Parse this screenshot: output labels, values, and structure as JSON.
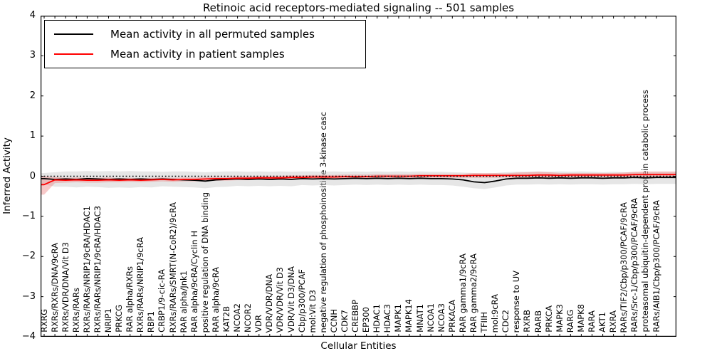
{
  "window": {
    "title": "Retinoic acid receptors-mediated signaling -- 501 samples"
  },
  "colors": {
    "background": "#ffffff",
    "axis": "#000000",
    "permuted_line": "#000000",
    "permuted_band": "#dcdcdc",
    "patient_line": "#ff0000",
    "patient_band": "#f5bcbc",
    "reference_line": "#000000"
  },
  "chart_data": {
    "type": "line",
    "title": "Retinoic acid receptors-mediated signaling -- 501 samples",
    "xlabel": "Cellular Entities",
    "ylabel": "Inferred Activity",
    "ylim": [
      -4,
      4
    ],
    "grid": false,
    "legend_position": "upper left",
    "yticks": [
      {
        "label": "4",
        "value": 4
      },
      {
        "label": "3",
        "value": 3
      },
      {
        "label": "2",
        "value": 2
      },
      {
        "label": "1",
        "value": 1
      },
      {
        "label": "0",
        "value": 0
      },
      {
        "label": "−1",
        "value": -1
      },
      {
        "label": "−2",
        "value": -2
      },
      {
        "label": "−3",
        "value": -3
      },
      {
        "label": "−4",
        "value": -4
      }
    ],
    "categories": [
      "RXRG",
      "RXRs/RXRs/DNA/9cRA",
      "RXRs/VDR/DNA/Vit D3",
      "RXRs/RARs",
      "RXRs/RARs/NRIP1/9cRA/HDAC1",
      "RXRs/RARs/NRIP1/9cRA/HDAC3",
      "NRIP1",
      "PRKCG",
      "RAR alpha/RXRs",
      "RXRs/RARs/NRIP1/9cRA",
      "RBP1",
      "CRBP1/9-cic-RA",
      "RXRs/RARs/SMRT(N-CoR2)/9cRA",
      "RAR alpha/Jnk1",
      "RAR alpha/9cRA/Cyclin H",
      "positive regulation of DNA binding",
      "RAR alpha/9cRA",
      "KAT2B",
      "NCOA2",
      "NCOR2",
      "VDR",
      "VDR/VDR/DNA",
      "VDR/VDR/Vit D3",
      "VDR/Vit D3/DNA",
      "Cbp/p300/PCAF",
      "mol:Vit D3",
      "negative regulation of phosphoinositide 3-kinase casc",
      "CCNH",
      "CDK7",
      "CREBBP",
      "EP300",
      "HDAC1",
      "HDAC3",
      "MAPK1",
      "MAPK14",
      "MNAT1",
      "NCOA1",
      "NCOA3",
      "PRKACA",
      "RAR gamma1/9cRA",
      "RAR gamma2/9cRA",
      "TFIIH",
      "mol:9cRA",
      "CDC2",
      "response to UV",
      "RXRB",
      "RARB",
      "PRKCA",
      "MAPK3",
      "RARG",
      "MAPK8",
      "RARA",
      "AKT1",
      "RXRA",
      "RARs/TIF2/Cbp/p300/PCAF/9cRA",
      "RARs/Src-1/Cbp/p300/PCAF/9cRA",
      "proteasomal ubiquitin-dependent protein catabolic process",
      "RARs/AIB1/Cbp/p300/PCAF/9cRA"
    ],
    "reference_line": {
      "y": 0,
      "style": "dotted",
      "color": "#000000"
    },
    "series": [
      {
        "name": "Mean activity in all permuted samples",
        "color": "#000000",
        "band_color": "#c8c8c8",
        "values": [
          -0.06,
          -0.08,
          -0.07,
          -0.08,
          -0.06,
          -0.07,
          -0.08,
          -0.07,
          -0.08,
          -0.07,
          -0.08,
          -0.07,
          -0.08,
          -0.09,
          -0.1,
          -0.12,
          -0.09,
          -0.08,
          -0.07,
          -0.08,
          -0.07,
          -0.08,
          -0.07,
          -0.08,
          -0.06,
          -0.07,
          -0.06,
          -0.07,
          -0.06,
          -0.05,
          -0.06,
          -0.05,
          -0.06,
          -0.05,
          -0.06,
          -0.05,
          -0.06,
          -0.06,
          -0.07,
          -0.09,
          -0.14,
          -0.16,
          -0.12,
          -0.07,
          -0.05,
          -0.05,
          -0.04,
          -0.05,
          -0.04,
          -0.05,
          -0.04,
          -0.04,
          -0.05,
          -0.04,
          -0.04,
          -0.03,
          -0.04,
          -0.03
        ],
        "band_upper": [
          0.08,
          0.1,
          0.12,
          0.12,
          0.13,
          0.12,
          0.13,
          0.12,
          0.13,
          0.12,
          0.12,
          0.11,
          0.12,
          0.12,
          0.11,
          0.1,
          0.11,
          0.12,
          0.12,
          0.11,
          0.12,
          0.11,
          0.12,
          0.11,
          0.12,
          0.12,
          0.11,
          0.12,
          0.11,
          0.12,
          0.11,
          0.12,
          0.11,
          0.12,
          0.11,
          0.12,
          0.11,
          0.11,
          0.1,
          0.09,
          0.08,
          0.07,
          0.08,
          0.1,
          0.11,
          0.11,
          0.12,
          0.11,
          0.12,
          0.11,
          0.12,
          0.11,
          0.1,
          0.11,
          0.1,
          0.1,
          0.09,
          0.1
        ],
        "band_lower": [
          -0.2,
          -0.26,
          -0.26,
          -0.28,
          -0.26,
          -0.27,
          -0.29,
          -0.28,
          -0.29,
          -0.27,
          -0.28,
          -0.25,
          -0.26,
          -0.27,
          -0.28,
          -0.3,
          -0.27,
          -0.26,
          -0.24,
          -0.25,
          -0.24,
          -0.25,
          -0.24,
          -0.25,
          -0.22,
          -0.23,
          -0.22,
          -0.23,
          -0.22,
          -0.21,
          -0.22,
          -0.21,
          -0.22,
          -0.21,
          -0.22,
          -0.21,
          -0.22,
          -0.22,
          -0.23,
          -0.26,
          -0.3,
          -0.32,
          -0.28,
          -0.23,
          -0.21,
          -0.21,
          -0.2,
          -0.21,
          -0.2,
          -0.21,
          -0.2,
          -0.2,
          -0.21,
          -0.2,
          -0.2,
          -0.19,
          -0.2,
          -0.19
        ]
      },
      {
        "name": "Mean activity in patient samples",
        "color": "#ff0000",
        "band_color": "#ee8888",
        "values": [
          -0.21,
          -0.09,
          -0.1,
          -0.09,
          -0.1,
          -0.1,
          -0.09,
          -0.1,
          -0.09,
          -0.1,
          -0.09,
          -0.08,
          -0.09,
          -0.08,
          -0.08,
          -0.07,
          -0.06,
          -0.06,
          -0.05,
          -0.05,
          -0.04,
          -0.04,
          -0.04,
          -0.03,
          -0.03,
          -0.02,
          -0.02,
          -0.02,
          -0.01,
          -0.01,
          -0.01,
          0.0,
          0.0,
          0.0,
          0.0,
          0.01,
          0.01,
          0.01,
          0.01,
          0.01,
          0.02,
          0.02,
          0.02,
          0.02,
          0.02,
          0.02,
          0.03,
          0.03,
          0.02,
          0.03,
          0.03,
          0.03,
          0.03,
          0.03,
          0.03,
          0.04,
          0.04,
          0.04
        ],
        "band_upper": [
          0.0,
          -0.02,
          -0.04,
          -0.03,
          -0.04,
          -0.04,
          -0.03,
          -0.05,
          -0.04,
          -0.05,
          -0.04,
          -0.03,
          -0.04,
          -0.03,
          -0.03,
          -0.02,
          -0.01,
          -0.01,
          0.0,
          0.0,
          0.01,
          0.01,
          0.01,
          0.02,
          0.02,
          0.03,
          0.03,
          0.03,
          0.04,
          0.04,
          0.04,
          0.05,
          0.05,
          0.05,
          0.05,
          0.06,
          0.06,
          0.06,
          0.06,
          0.06,
          0.08,
          0.08,
          0.08,
          0.07,
          0.09,
          0.1,
          0.11,
          0.1,
          0.08,
          0.08,
          0.08,
          0.08,
          0.08,
          0.08,
          0.09,
          0.11,
          0.12,
          0.12
        ],
        "band_lower": [
          -0.46,
          -0.17,
          -0.16,
          -0.15,
          -0.16,
          -0.16,
          -0.15,
          -0.15,
          -0.14,
          -0.15,
          -0.14,
          -0.13,
          -0.14,
          -0.13,
          -0.13,
          -0.12,
          -0.11,
          -0.11,
          -0.1,
          -0.1,
          -0.09,
          -0.09,
          -0.09,
          -0.08,
          -0.08,
          -0.07,
          -0.07,
          -0.07,
          -0.06,
          -0.06,
          -0.06,
          -0.05,
          -0.05,
          -0.05,
          -0.05,
          -0.04,
          -0.04,
          -0.04,
          -0.04,
          -0.04,
          -0.04,
          -0.04,
          -0.04,
          -0.03,
          -0.05,
          -0.06,
          -0.05,
          -0.04,
          -0.04,
          -0.03,
          -0.03,
          -0.02,
          -0.02,
          -0.02,
          -0.03,
          -0.03,
          -0.04,
          -0.04
        ]
      }
    ]
  }
}
